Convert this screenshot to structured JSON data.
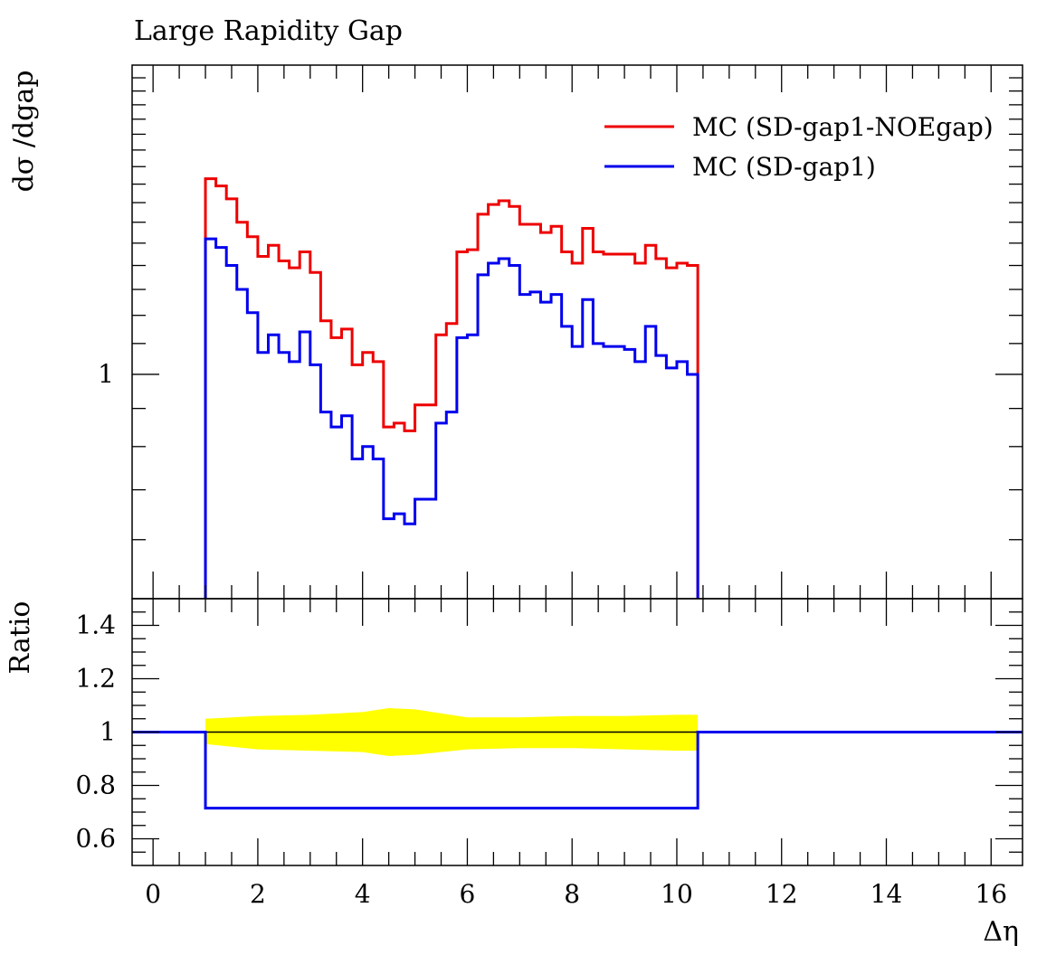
{
  "chart_data": [
    {
      "type": "line",
      "title": "Large Rapidity Gap",
      "ylabel": "dσ /dgap",
      "xlabel": "",
      "scale": "log",
      "xlim": [
        -0.4,
        16.6
      ],
      "ylim": [
        0.5,
        2.6
      ],
      "yticks_labeled": [
        {
          "value": 1,
          "label": "1"
        }
      ],
      "legend_position": "top-right",
      "bin_edges": [
        1.0,
        1.2,
        1.4,
        1.6,
        1.8,
        2.0,
        2.2,
        2.4,
        2.6,
        2.8,
        3.0,
        3.2,
        3.4,
        3.6,
        3.8,
        4.0,
        4.2,
        4.4,
        4.6,
        4.8,
        5.0,
        5.2,
        5.4,
        5.6,
        5.8,
        6.0,
        6.2,
        6.4,
        6.6,
        6.8,
        7.0,
        7.2,
        7.4,
        7.6,
        7.8,
        8.0,
        8.2,
        8.4,
        8.6,
        8.8,
        9.0,
        9.2,
        9.4,
        9.6,
        9.8,
        10.0,
        10.2,
        10.4
      ],
      "series": [
        {
          "name": "MC (SD-gap1-NOEgap)",
          "color": "#ee0000",
          "values": [
            1.83,
            1.79,
            1.72,
            1.6,
            1.53,
            1.44,
            1.49,
            1.42,
            1.39,
            1.46,
            1.37,
            1.18,
            1.12,
            1.15,
            1.03,
            1.07,
            1.04,
            0.85,
            0.86,
            0.84,
            0.91,
            0.91,
            1.13,
            1.17,
            1.46,
            1.47,
            1.64,
            1.69,
            1.71,
            1.68,
            1.59,
            1.59,
            1.55,
            1.58,
            1.46,
            1.41,
            1.57,
            1.46,
            1.45,
            1.45,
            1.45,
            1.41,
            1.49,
            1.43,
            1.39,
            1.41,
            1.4
          ]
        },
        {
          "name": "MC (SD-gap1)",
          "color": "#0000ee",
          "values": [
            1.52,
            1.48,
            1.4,
            1.3,
            1.21,
            1.07,
            1.13,
            1.07,
            1.04,
            1.14,
            1.03,
            0.89,
            0.85,
            0.88,
            0.77,
            0.8,
            0.77,
            0.64,
            0.65,
            0.63,
            0.68,
            0.68,
            0.86,
            0.89,
            1.12,
            1.13,
            1.36,
            1.41,
            1.43,
            1.4,
            1.28,
            1.29,
            1.25,
            1.28,
            1.16,
            1.09,
            1.26,
            1.1,
            1.09,
            1.09,
            1.08,
            1.04,
            1.16,
            1.06,
            1.02,
            1.04,
            1.0
          ]
        }
      ]
    },
    {
      "type": "line",
      "title": "",
      "ylabel": "Ratio",
      "xlabel": "Δη",
      "xlim": [
        -0.4,
        16.6
      ],
      "ylim": [
        0.5,
        1.5
      ],
      "xticks": [
        0,
        2,
        4,
        6,
        8,
        10,
        12,
        14,
        16
      ],
      "yticks": [
        0.6,
        0.8,
        1.0,
        1.2,
        1.4
      ],
      "ytick_labels": [
        "0.6",
        "0.8",
        "1",
        "1.2",
        "1.4"
      ],
      "band": {
        "color": "#ffff00",
        "x": [
          1.0,
          2.0,
          3.0,
          4.0,
          4.5,
          5.0,
          6.0,
          7.0,
          8.0,
          9.0,
          10.0,
          10.4
        ],
        "lower": [
          0.955,
          0.935,
          0.93,
          0.925,
          0.91,
          0.915,
          0.935,
          0.94,
          0.94,
          0.935,
          0.93,
          0.93
        ],
        "upper": [
          1.05,
          1.06,
          1.065,
          1.075,
          1.09,
          1.085,
          1.055,
          1.055,
          1.06,
          1.06,
          1.065,
          1.065
        ]
      },
      "series": [
        {
          "name": "MC (SD-gap1-NOEgap)",
          "color": "#000000",
          "x": [
            -0.4,
            16.6
          ],
          "values": [
            1.0,
            1.0
          ]
        },
        {
          "name": "MC (SD-gap1)",
          "color": "#0000ee",
          "x": [
            -0.4,
            1.0,
            1.0,
            10.4,
            10.4,
            16.6
          ],
          "values": [
            1.0,
            1.0,
            0.715,
            0.715,
            1.0,
            1.0
          ]
        }
      ]
    }
  ]
}
